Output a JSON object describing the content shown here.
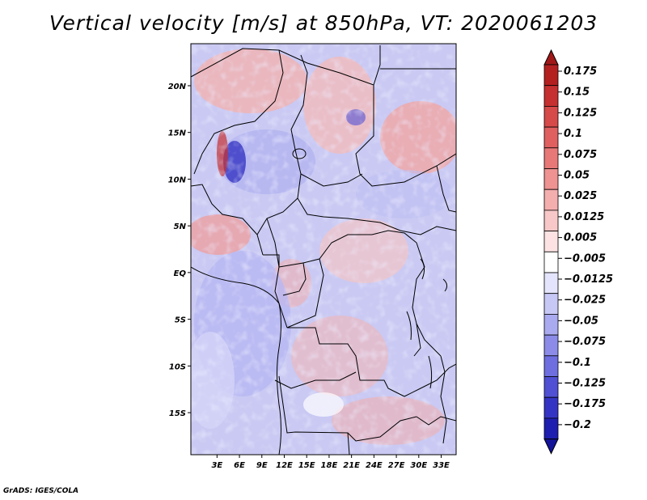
{
  "title": "Vertical velocity [m/s] at 850hPa, VT: 2020061203",
  "footer": "GrADS: IGES/COLA",
  "map": {
    "lon_range": [
      -0.5,
      35
    ],
    "lat_range": [
      -19.5,
      24.5
    ],
    "lat_ticks": [
      {
        "value": 20,
        "label": "20N"
      },
      {
        "value": 15,
        "label": "15N"
      },
      {
        "value": 10,
        "label": "10N"
      },
      {
        "value": 5,
        "label": "5N"
      },
      {
        "value": 0,
        "label": "EQ"
      },
      {
        "value": -5,
        "label": "5S"
      },
      {
        "value": -10,
        "label": "10S"
      },
      {
        "value": -15,
        "label": "15S"
      }
    ],
    "lon_ticks": [
      {
        "value": 3,
        "label": "3E"
      },
      {
        "value": 6,
        "label": "6E"
      },
      {
        "value": 9,
        "label": "9E"
      },
      {
        "value": 12,
        "label": "12E"
      },
      {
        "value": 15,
        "label": "15E"
      },
      {
        "value": 18,
        "label": "18E"
      },
      {
        "value": 21,
        "label": "21E"
      },
      {
        "value": 24,
        "label": "24E"
      },
      {
        "value": 27,
        "label": "27E"
      },
      {
        "value": 30,
        "label": "30E"
      },
      {
        "value": 33,
        "label": "33E"
      }
    ]
  },
  "colorbar": {
    "levels": [
      {
        "label": "0.175",
        "color": "#b42020"
      },
      {
        "label": "0.15",
        "color": "#c63030"
      },
      {
        "label": "0.125",
        "color": "#d64a4a"
      },
      {
        "label": "0.1",
        "color": "#e06060"
      },
      {
        "label": "0.075",
        "color": "#e87878"
      },
      {
        "label": "0.05",
        "color": "#ee9292"
      },
      {
        "label": "0.025",
        "color": "#f4aeae"
      },
      {
        "label": "0.0125",
        "color": "#f8c8c8"
      },
      {
        "label": "0.005",
        "color": "#fce2e2"
      },
      {
        "label": "−0.005",
        "color": "#ffffff"
      },
      {
        "label": "−0.0125",
        "color": "#e4e4fc"
      },
      {
        "label": "−0.025",
        "color": "#c8c8f6"
      },
      {
        "label": "−0.05",
        "color": "#aaaaf0"
      },
      {
        "label": "−0.075",
        "color": "#8c8ce8"
      },
      {
        "label": "−0.1",
        "color": "#6e6ee0"
      },
      {
        "label": "−0.125",
        "color": "#5050d4"
      },
      {
        "label": "−0.175",
        "color": "#3434c4"
      },
      {
        "label": "−0.2",
        "color": "#1e1eb0"
      }
    ],
    "top_arrow_color": "#a01818",
    "bottom_arrow_color": "#14149a"
  }
}
